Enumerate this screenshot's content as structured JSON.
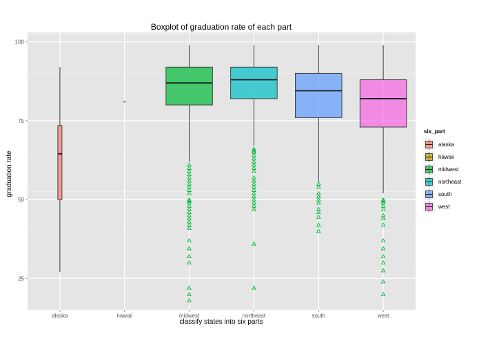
{
  "chart_data": {
    "type": "box",
    "title": "Boxplot of graduation rate of each part",
    "xlabel": "classify states into six parts",
    "ylabel": "graduation rate",
    "ylim": [
      15,
      103
    ],
    "yticks": [
      25,
      50,
      75,
      100
    ],
    "categories": [
      "alaska",
      "hawaii",
      "midwest",
      "northeast",
      "south",
      "west"
    ],
    "legend": {
      "title": "six_part",
      "position": "right"
    },
    "grid": true,
    "outlier_color": "#00BA38",
    "outlier_shape": "triangle-open",
    "boxes": [
      {
        "category": "alaska",
        "color": "#F8766D",
        "q1": 50,
        "median": 64.5,
        "q3": 73.5,
        "whisker_low": 27,
        "whisker_high": 92,
        "outliers": []
      },
      {
        "category": "hawaii",
        "color": "#B79F00",
        "q1": 81,
        "median": 81,
        "q3": 81,
        "whisker_low": 81,
        "whisker_high": 81,
        "outliers": []
      },
      {
        "category": "midwest",
        "color": "#00BA38",
        "q1": 80,
        "median": 87,
        "q3": 92,
        "whisker_low": 62,
        "whisker_high": 99,
        "outliers": [
          61,
          60,
          59,
          58,
          57,
          56,
          55,
          54,
          53,
          52,
          50,
          49.5,
          49,
          48,
          47,
          46,
          45,
          44,
          43,
          42,
          41,
          37,
          34.5,
          32,
          30,
          22,
          20,
          18
        ]
      },
      {
        "category": "northeast",
        "color": "#00BFC4",
        "q1": 82,
        "median": 88,
        "q3": 92,
        "whisker_low": 67,
        "whisker_high": 99,
        "outliers": [
          66,
          65.5,
          65,
          64,
          63,
          62,
          61,
          60,
          59,
          57,
          56,
          55,
          54,
          53,
          52,
          51,
          50,
          49,
          48,
          47,
          36,
          22
        ]
      },
      {
        "category": "south",
        "color": "#619CFF",
        "q1": 76,
        "median": 84.5,
        "q3": 90,
        "whisker_low": 55.5,
        "whisker_high": 99,
        "outliers": [
          55,
          54,
          52,
          51,
          50,
          49,
          47,
          46,
          44.5,
          42,
          40
        ]
      },
      {
        "category": "west",
        "color": "#F564E3",
        "q1": 73,
        "median": 82,
        "q3": 88,
        "whisker_low": 52,
        "whisker_high": 99,
        "outliers": [
          50,
          49.5,
          49,
          48,
          47,
          45,
          44,
          42,
          37,
          34.5,
          32,
          30,
          27.5,
          24,
          20
        ]
      }
    ]
  }
}
